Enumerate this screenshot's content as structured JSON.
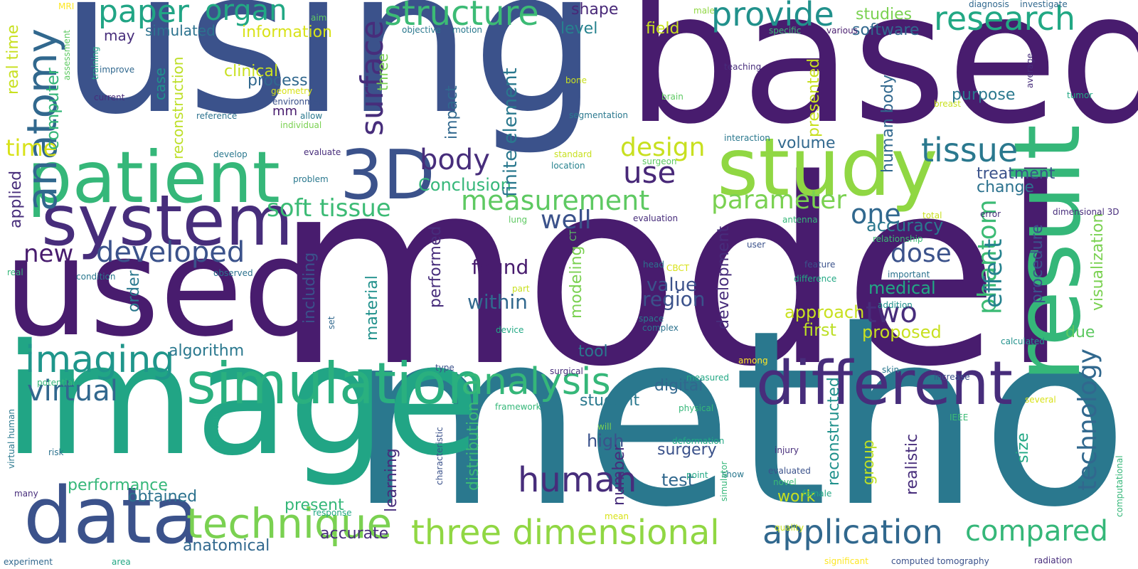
{
  "words": [
    {
      "text": "model",
      "color": "#481c6e"
    },
    {
      "text": "method",
      "color": "#2a788e"
    },
    {
      "text": "using",
      "color": "#3b528b"
    },
    {
      "text": "based",
      "color": "#481c6e"
    },
    {
      "text": "image",
      "color": "#21a585"
    },
    {
      "text": "used",
      "color": "#481c6e"
    },
    {
      "text": "patient",
      "color": "#35b779"
    },
    {
      "text": "study",
      "color": "#90d743"
    },
    {
      "text": "result",
      "color": "#35b779"
    },
    {
      "text": "system",
      "color": "#472d7b"
    },
    {
      "text": "data",
      "color": "#3b528b"
    },
    {
      "text": "3D",
      "color": "#3b528b"
    },
    {
      "text": "different",
      "color": "#472d7b"
    },
    {
      "text": "simulation",
      "color": "#2ab07f"
    },
    {
      "text": "application",
      "color": "#31688e"
    },
    {
      "text": "three dimensional",
      "color": "#90d743"
    },
    {
      "text": "technique",
      "color": "#7ad151"
    },
    {
      "text": "human",
      "color": "#472d7b"
    },
    {
      "text": "analysis",
      "color": "#35b779"
    },
    {
      "text": "imaging",
      "color": "#1f968b"
    },
    {
      "text": "anatomy",
      "color": "#31688e"
    },
    {
      "text": "structure",
      "color": "#3cbb75"
    },
    {
      "text": "provide",
      "color": "#21918c"
    },
    {
      "text": "research",
      "color": "#22a884"
    },
    {
      "text": "paper",
      "color": "#21a585"
    },
    {
      "text": "organ",
      "color": "#22a884"
    },
    {
      "text": "surface",
      "color": "#472d7b"
    },
    {
      "text": "tissue",
      "color": "#2a788e"
    },
    {
      "text": "compared",
      "color": "#35b779"
    },
    {
      "text": "developed",
      "color": "#3b528b"
    },
    {
      "text": "virtual",
      "color": "#31688e"
    },
    {
      "text": "soft tissue",
      "color": "#3cbb75"
    },
    {
      "text": "measurement",
      "color": "#5ec962"
    },
    {
      "text": "body",
      "color": "#472d7b"
    },
    {
      "text": "use",
      "color": "#482878"
    },
    {
      "text": "parameter",
      "color": "#7ad151"
    },
    {
      "text": "design",
      "color": "#c8e020"
    },
    {
      "text": "one",
      "color": "#31688e"
    },
    {
      "text": "two",
      "color": "#472d7b"
    },
    {
      "text": "dose",
      "color": "#3b528b"
    },
    {
      "text": "technology",
      "color": "#31688e"
    },
    {
      "text": "phantom",
      "color": "#3cbb75"
    },
    {
      "text": "effect",
      "color": "#26828e"
    },
    {
      "text": "new",
      "color": "#481c6e"
    },
    {
      "text": "time",
      "color": "#d8e219"
    },
    {
      "text": "real time",
      "color": "#c8e020"
    },
    {
      "text": "computer",
      "color": "#35b779"
    },
    {
      "text": "applied",
      "color": "#472d7b"
    },
    {
      "text": "well",
      "color": "#3b528b"
    },
    {
      "text": "found",
      "color": "#481c6e"
    },
    {
      "text": "within",
      "color": "#31688e"
    },
    {
      "text": "value",
      "color": "#3b528b"
    },
    {
      "text": "region",
      "color": "#3b528b"
    },
    {
      "text": "accuracy",
      "color": "#2a788e"
    },
    {
      "text": "medical",
      "color": "#22a884"
    },
    {
      "text": "approach",
      "color": "#c8e020"
    },
    {
      "text": "first",
      "color": "#bddf26"
    },
    {
      "text": "proposed",
      "color": "#c8e020"
    },
    {
      "text": "Conclusion",
      "color": "#35b779"
    },
    {
      "text": "finite element",
      "color": "#2a788e"
    },
    {
      "text": "impact",
      "color": "#31688e"
    },
    {
      "text": "shape",
      "color": "#482878"
    },
    {
      "text": "level",
      "color": "#26828e"
    },
    {
      "text": "field",
      "color": "#c8e020"
    },
    {
      "text": "information",
      "color": "#d8e219"
    },
    {
      "text": "simulated",
      "color": "#2c728e"
    },
    {
      "text": "clinical",
      "color": "#c8e020"
    },
    {
      "text": "process",
      "color": "#31688e"
    },
    {
      "text": "case",
      "color": "#21918c"
    },
    {
      "text": "three",
      "color": "#7ad151"
    },
    {
      "text": "may",
      "color": "#472d7b"
    },
    {
      "text": "mm",
      "color": "#481c6e"
    },
    {
      "text": "reconstruction",
      "color": "#bddf26"
    },
    {
      "text": "studies",
      "color": "#7ad151"
    },
    {
      "text": "software",
      "color": "#31688e"
    },
    {
      "text": "purpose",
      "color": "#2a788e"
    },
    {
      "text": "presented",
      "color": "#c8e020"
    },
    {
      "text": "human body",
      "color": "#31688e"
    },
    {
      "text": "volume",
      "color": "#31688e"
    },
    {
      "text": "treatment",
      "color": "#3b528b"
    },
    {
      "text": "change",
      "color": "#2c728e"
    },
    {
      "text": "procedure",
      "color": "#3b528b"
    },
    {
      "text": "visualization",
      "color": "#7ad151"
    },
    {
      "text": "due",
      "color": "#5ec962"
    },
    {
      "text": "development",
      "color": "#472d7b"
    },
    {
      "text": "modeling",
      "color": "#7ad151"
    },
    {
      "text": "performed",
      "color": "#472d7b"
    },
    {
      "text": "including",
      "color": "#3b528b"
    },
    {
      "text": "material",
      "color": "#21918c"
    },
    {
      "text": "algorithm",
      "color": "#2a788e"
    },
    {
      "text": "tool",
      "color": "#2a788e"
    },
    {
      "text": "digital",
      "color": "#31688e"
    },
    {
      "text": "student",
      "color": "#2a788e"
    },
    {
      "text": "surgery",
      "color": "#3b528b"
    },
    {
      "text": "high",
      "color": "#3b528b"
    },
    {
      "text": "test",
      "color": "#31688e"
    },
    {
      "text": "number",
      "color": "#472d7b"
    },
    {
      "text": "distribution",
      "color": "#3cbb75"
    },
    {
      "text": "learning",
      "color": "#472d7b"
    },
    {
      "text": "accurate",
      "color": "#472d7b"
    },
    {
      "text": "present",
      "color": "#35b779"
    },
    {
      "text": "obtained",
      "color": "#2c728e"
    },
    {
      "text": "performance",
      "color": "#35b779"
    },
    {
      "text": "anatomical",
      "color": "#31688e"
    },
    {
      "text": "reconstructed",
      "color": "#21918c"
    },
    {
      "text": "group",
      "color": "#bddf26"
    },
    {
      "text": "realistic",
      "color": "#472d7b"
    },
    {
      "text": "size",
      "color": "#22a884"
    },
    {
      "text": "work",
      "color": "#c8e020"
    },
    {
      "text": "order",
      "color": "#2a788e"
    },
    {
      "text": "MRI",
      "color": "#fde725"
    },
    {
      "text": "aim",
      "color": "#5ec962"
    },
    {
      "text": "male",
      "color": "#90d743"
    },
    {
      "text": "diagnosis",
      "color": "#31688e"
    },
    {
      "text": "investigate",
      "color": "#31688e"
    },
    {
      "text": "specific",
      "color": "#3cbb75"
    },
    {
      "text": "various",
      "color": "#481c6e"
    },
    {
      "text": "objective",
      "color": "#2a788e"
    },
    {
      "text": "motion",
      "color": "#2a788e"
    },
    {
      "text": "training",
      "color": "#21a585"
    },
    {
      "text": "assessment",
      "color": "#5ec962"
    },
    {
      "text": "improve",
      "color": "#31688e"
    },
    {
      "text": "current",
      "color": "#472d7b"
    },
    {
      "text": "geometry",
      "color": "#d8e219"
    },
    {
      "text": "environment",
      "color": "#3b528b"
    },
    {
      "text": "reference",
      "color": "#2c728e"
    },
    {
      "text": "allow",
      "color": "#2a788e"
    },
    {
      "text": "individual",
      "color": "#7ad151"
    },
    {
      "text": "bone",
      "color": "#c8e020"
    },
    {
      "text": "teaching",
      "color": "#472d7b"
    },
    {
      "text": "average",
      "color": "#472d7b"
    },
    {
      "text": "tumor",
      "color": "#22a884"
    },
    {
      "text": "breast",
      "color": "#c8e020"
    },
    {
      "text": "brain",
      "color": "#5ec962"
    },
    {
      "text": "segmentation",
      "color": "#2a788e"
    },
    {
      "text": "interaction",
      "color": "#2a788e"
    },
    {
      "text": "develop",
      "color": "#2a788e"
    },
    {
      "text": "evaluate",
      "color": "#472d7b"
    },
    {
      "text": "standard",
      "color": "#c8e020"
    },
    {
      "text": "surgeon",
      "color": "#5ec962"
    },
    {
      "text": "location",
      "color": "#26828e"
    },
    {
      "text": "problem",
      "color": "#2a788e"
    },
    {
      "text": "lung",
      "color": "#5ec962"
    },
    {
      "text": "evaluation",
      "color": "#472d7b"
    },
    {
      "text": "antenna",
      "color": "#35b779"
    },
    {
      "text": "total",
      "color": "#c8e020"
    },
    {
      "text": "error",
      "color": "#472d7b"
    },
    {
      "text": "dimensional 3D",
      "color": "#472d7b"
    },
    {
      "text": "relationship",
      "color": "#3cbb75"
    },
    {
      "text": "CT",
      "color": "#5ec962"
    },
    {
      "text": "user",
      "color": "#3b528b"
    },
    {
      "text": "head",
      "color": "#2c728e"
    },
    {
      "text": "CBCT",
      "color": "#d8e219"
    },
    {
      "text": "feature",
      "color": "#3b528b"
    },
    {
      "text": "difference",
      "color": "#22a884"
    },
    {
      "text": "important",
      "color": "#2c728e"
    },
    {
      "text": "addition",
      "color": "#21918c"
    },
    {
      "text": "real",
      "color": "#35b779"
    },
    {
      "text": "condition",
      "color": "#2a788e"
    },
    {
      "text": "observed",
      "color": "#2c728e"
    },
    {
      "text": "set",
      "color": "#31688e"
    },
    {
      "text": "part",
      "color": "#c8e020"
    },
    {
      "text": "space",
      "color": "#2a788e"
    },
    {
      "text": "complex",
      "color": "#2c728e"
    },
    {
      "text": "device",
      "color": "#22a884"
    },
    {
      "text": "calculated",
      "color": "#21918c"
    },
    {
      "text": "among",
      "color": "#fde725"
    },
    {
      "text": "potential",
      "color": "#35b779"
    },
    {
      "text": "type",
      "color": "#3b528b"
    },
    {
      "text": "surgical",
      "color": "#472d7b"
    },
    {
      "text": "measured",
      "color": "#22a884"
    },
    {
      "text": "skin",
      "color": "#2a788e"
    },
    {
      "text": "increase",
      "color": "#3b528b"
    },
    {
      "text": "framework",
      "color": "#35b779"
    },
    {
      "text": "physical",
      "color": "#35b779"
    },
    {
      "text": "several",
      "color": "#d8e219"
    },
    {
      "text": "will",
      "color": "#7ad151"
    },
    {
      "text": "IEEE",
      "color": "#3cbb75"
    },
    {
      "text": "virtual human",
      "color": "#2a788e"
    },
    {
      "text": "position",
      "color": "#22a884"
    },
    {
      "text": "risk",
      "color": "#2c728e"
    },
    {
      "text": "deformation",
      "color": "#22a884"
    },
    {
      "text": "injury",
      "color": "#472d7b"
    },
    {
      "text": "point",
      "color": "#22a884"
    },
    {
      "text": "show",
      "color": "#2a788e"
    },
    {
      "text": "evaluated",
      "color": "#3b528b"
    },
    {
      "text": "novel",
      "color": "#3cbb75"
    },
    {
      "text": "female",
      "color": "#22a884"
    },
    {
      "text": "characteristic",
      "color": "#3b528b"
    },
    {
      "text": "simulator",
      "color": "#35b779"
    },
    {
      "text": "computational",
      "color": "#35b779"
    },
    {
      "text": "many",
      "color": "#472d7b"
    },
    {
      "text": "response",
      "color": "#22a884"
    },
    {
      "text": "mean",
      "color": "#d8e219"
    },
    {
      "text": "quality",
      "color": "#c8e020"
    },
    {
      "text": "experiment",
      "color": "#31688e"
    },
    {
      "text": "area",
      "color": "#22a884"
    },
    {
      "text": "significant",
      "color": "#fde725"
    },
    {
      "text": "computed tomography",
      "color": "#3b528b"
    },
    {
      "text": "radiation",
      "color": "#472d7b"
    }
  ]
}
